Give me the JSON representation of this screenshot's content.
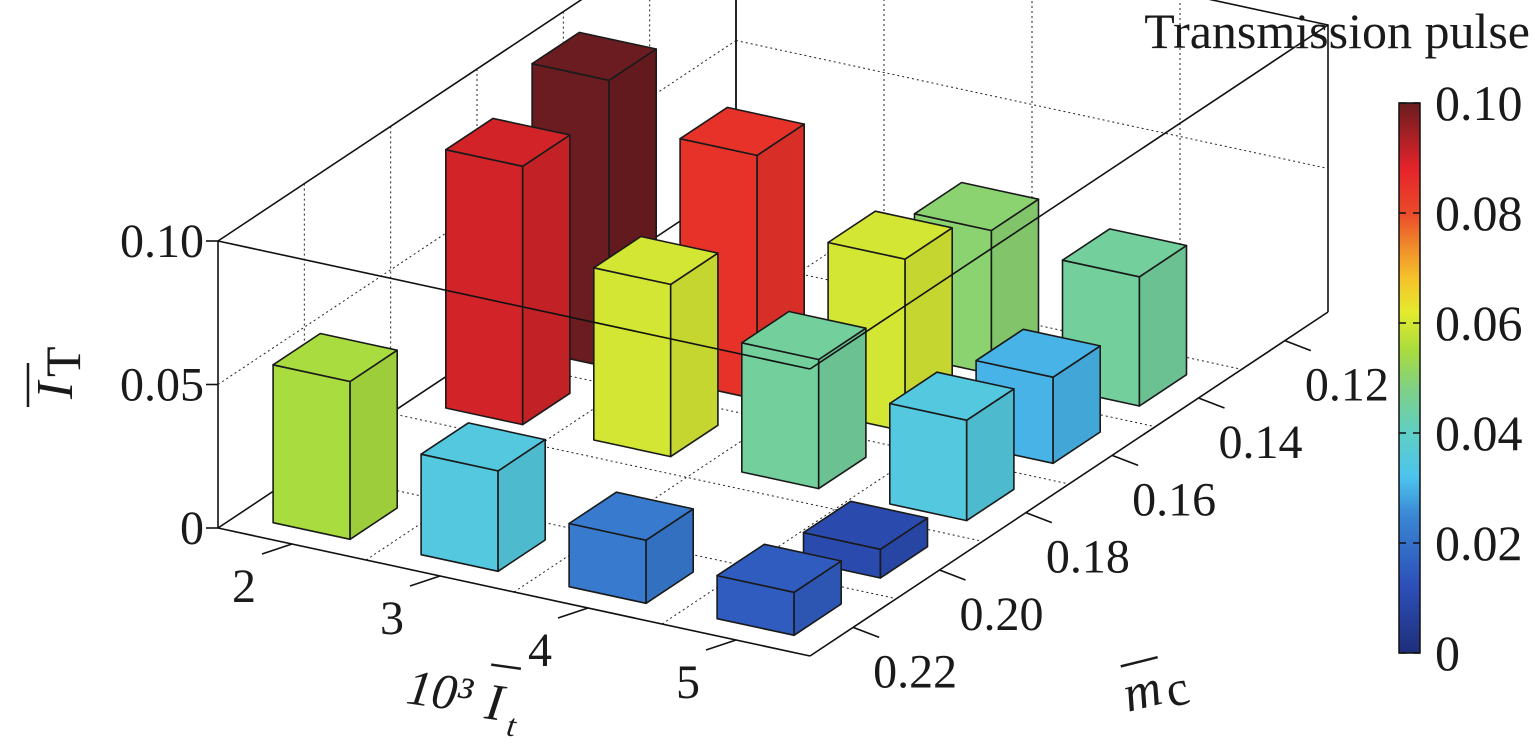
{
  "chart_data": {
    "type": "bar3d",
    "colorbar_title": "Transmission pulse",
    "y_axis": {
      "label_prefix": "10³",
      "label_symbol": "I",
      "label_subscript": "t",
      "ticks": [
        "2",
        "3",
        "4",
        "5"
      ],
      "values": [
        2,
        3,
        4,
        5
      ]
    },
    "x_axis": {
      "label_symbol": "m",
      "label_subscript": "c",
      "ticks": [
        "0.12",
        "0.14",
        "0.16",
        "0.18",
        "0.20",
        "0.22"
      ],
      "values": [
        0.12,
        0.14,
        0.16,
        0.18,
        0.2,
        0.22
      ]
    },
    "z_axis": {
      "label_symbol": "I",
      "label_subscript": "T",
      "ticks": [
        "0",
        "0.05",
        "0.10"
      ],
      "range": [
        0,
        0.1
      ]
    },
    "colorbar": {
      "ticks": [
        "0",
        "0.02",
        "0.04",
        "0.06",
        "0.08",
        "0.10"
      ],
      "range": [
        0,
        0.1
      ],
      "colormap": "jet"
    },
    "bars": [
      {
        "it": 2,
        "mc": 0.22,
        "value": 0.055
      },
      {
        "it": 3,
        "mc": 0.22,
        "value": 0.035
      },
      {
        "it": 4,
        "mc": 0.22,
        "value": 0.022
      },
      {
        "it": 5,
        "mc": 0.22,
        "value": 0.015
      },
      {
        "it": 5,
        "mc": 0.2,
        "value": 0.01
      },
      {
        "it": 2,
        "mc": 0.18,
        "value": 0.09
      },
      {
        "it": 3,
        "mc": 0.18,
        "value": 0.06
      },
      {
        "it": 4,
        "mc": 0.18,
        "value": 0.045
      },
      {
        "it": 5,
        "mc": 0.18,
        "value": 0.035
      },
      {
        "it": 2,
        "mc": 0.16,
        "value": 0.1
      },
      {
        "it": 3,
        "mc": 0.16,
        "value": 0.085
      },
      {
        "it": 4,
        "mc": 0.16,
        "value": 0.06
      },
      {
        "it": 5,
        "mc": 0.16,
        "value": 0.03
      },
      {
        "it": 4,
        "mc": 0.14,
        "value": 0.05
      },
      {
        "it": 5,
        "mc": 0.14,
        "value": 0.045
      }
    ]
  }
}
